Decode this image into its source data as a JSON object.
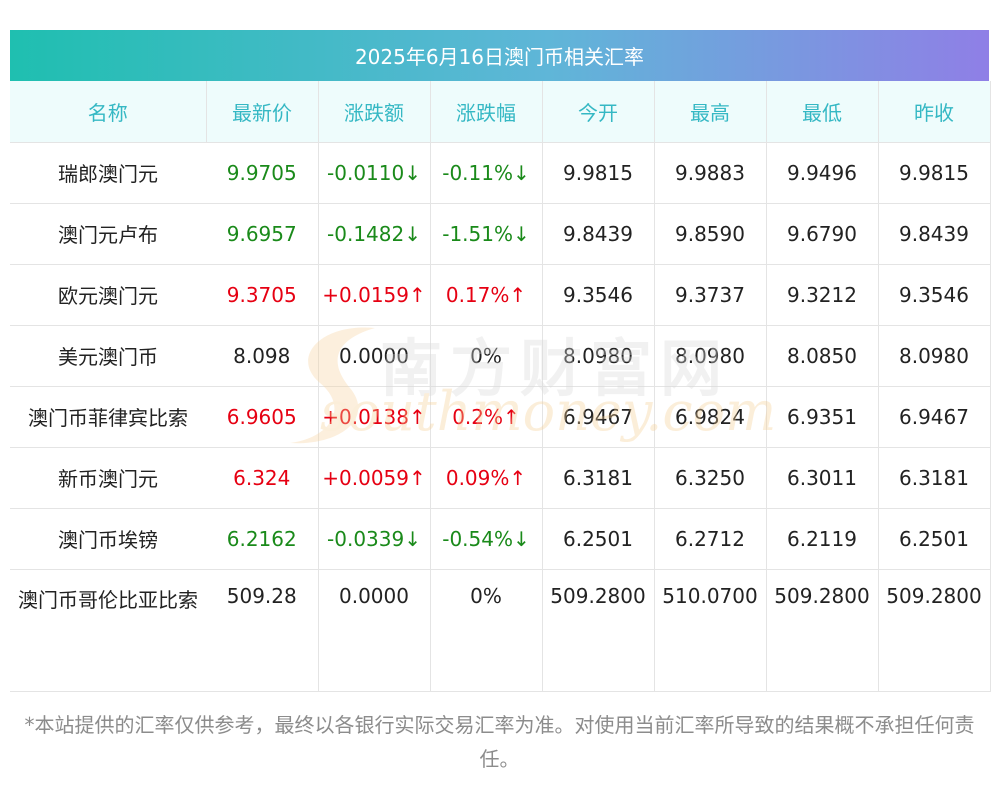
{
  "title": "2025年6月16日澳门币相关汇率",
  "headers": [
    "名称",
    "最新价",
    "涨跌额",
    "涨跌幅",
    "今开",
    "最高",
    "最低",
    "昨收"
  ],
  "rows": [
    {
      "name": "瑞郎澳门元",
      "latest": "9.9705",
      "change": "-0.0110↓",
      "pct": "-0.11%↓",
      "open": "9.9815",
      "high": "9.9883",
      "low": "9.9496",
      "prev": "9.9815",
      "trend": "down"
    },
    {
      "name": "澳门元卢布",
      "latest": "9.6957",
      "change": "-0.1482↓",
      "pct": "-1.51%↓",
      "open": "9.8439",
      "high": "9.8590",
      "low": "9.6790",
      "prev": "9.8439",
      "trend": "down"
    },
    {
      "name": "欧元澳门元",
      "latest": "9.3705",
      "change": "+0.0159↑",
      "pct": "0.17%↑",
      "open": "9.3546",
      "high": "9.3737",
      "low": "9.3212",
      "prev": "9.3546",
      "trend": "up"
    },
    {
      "name": "美元澳门币",
      "latest": "8.098",
      "change": "0.0000",
      "pct": "0%",
      "open": "8.0980",
      "high": "8.0980",
      "low": "8.0850",
      "prev": "8.0980",
      "trend": "flat"
    },
    {
      "name": "澳门币菲律宾比索",
      "latest": "6.9605",
      "change": "+0.0138↑",
      "pct": "0.2%↑",
      "open": "6.9467",
      "high": "6.9824",
      "low": "6.9351",
      "prev": "6.9467",
      "trend": "up"
    },
    {
      "name": "新币澳门元",
      "latest": "6.324",
      "change": "+0.0059↑",
      "pct": "0.09%↑",
      "open": "6.3181",
      "high": "6.3250",
      "low": "6.3011",
      "prev": "6.3181",
      "trend": "up"
    },
    {
      "name": "澳门币埃镑",
      "latest": "6.2162",
      "change": "-0.0339↓",
      "pct": "-0.54%↓",
      "open": "6.2501",
      "high": "6.2712",
      "low": "6.2119",
      "prev": "6.2501",
      "trend": "down"
    },
    {
      "name": "澳门币哥伦比亚比索",
      "latest": "509.28",
      "change": "0.0000",
      "pct": "0%",
      "open": "509.2800",
      "high": "510.0700",
      "low": "509.2800",
      "prev": "509.2800",
      "trend": "flat"
    }
  ],
  "watermark": {
    "cn": "南方财富网",
    "en": "southmoney.com"
  },
  "footnote": "*本站提供的汇率仅供参考，最终以各银行实际交易汇率为准。对使用当前汇率所导致的结果概不承担任何责任。",
  "colors": {
    "up": "#e60012",
    "down": "#1a8a1a",
    "header_text": "#35b8c4",
    "title_grad_start": "#1fbfb0",
    "title_grad_end": "#8f7fe6"
  }
}
